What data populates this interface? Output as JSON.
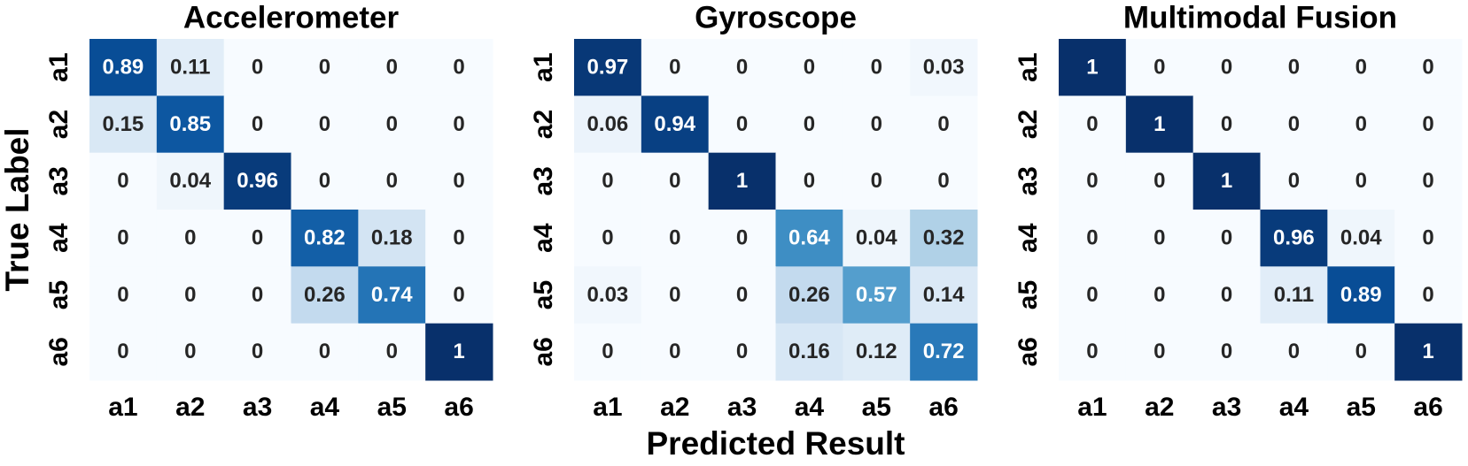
{
  "chart_data": [
    {
      "type": "heatmap",
      "title": "Accelerometer",
      "ylabel": "True Label",
      "cmap": "Blues",
      "clim": [
        0,
        1
      ],
      "x": [
        "a1",
        "a2",
        "a3",
        "a4",
        "a5",
        "a6"
      ],
      "y": [
        "a1",
        "a2",
        "a3",
        "a4",
        "a5",
        "a6"
      ],
      "values": [
        [
          0.89,
          0.11,
          0,
          0,
          0,
          0
        ],
        [
          0.15,
          0.85,
          0,
          0,
          0,
          0
        ],
        [
          0,
          0.04,
          0.96,
          0,
          0,
          0
        ],
        [
          0,
          0,
          0,
          0.82,
          0.18,
          0
        ],
        [
          0,
          0,
          0,
          0.26,
          0.74,
          0
        ],
        [
          0,
          0,
          0,
          0,
          0,
          1
        ]
      ]
    },
    {
      "type": "heatmap",
      "title": "Gyroscope",
      "xlabel": "Predicted Result",
      "cmap": "Blues",
      "clim": [
        0,
        1
      ],
      "x": [
        "a1",
        "a2",
        "a3",
        "a4",
        "a5",
        "a6"
      ],
      "y": [
        "a1",
        "a2",
        "a3",
        "a4",
        "a5",
        "a6"
      ],
      "values": [
        [
          0.97,
          0,
          0,
          0,
          0,
          0.03
        ],
        [
          0.06,
          0.94,
          0,
          0,
          0,
          0
        ],
        [
          0,
          0,
          1,
          0,
          0,
          0
        ],
        [
          0,
          0,
          0,
          0.64,
          0.04,
          0.32
        ],
        [
          0.03,
          0,
          0,
          0.26,
          0.57,
          0.14
        ],
        [
          0,
          0,
          0,
          0.16,
          0.12,
          0.72
        ]
      ]
    },
    {
      "type": "heatmap",
      "title": "Multimodal Fusion",
      "cmap": "Blues",
      "clim": [
        0,
        1
      ],
      "x": [
        "a1",
        "a2",
        "a3",
        "a4",
        "a5",
        "a6"
      ],
      "y": [
        "a1",
        "a2",
        "a3",
        "a4",
        "a5",
        "a6"
      ],
      "values": [
        [
          1,
          0,
          0,
          0,
          0,
          0
        ],
        [
          0,
          1,
          0,
          0,
          0,
          0
        ],
        [
          0,
          0,
          1,
          0,
          0,
          0
        ],
        [
          0,
          0,
          0,
          0.96,
          0.04,
          0
        ],
        [
          0,
          0,
          0,
          0.11,
          0.89,
          0
        ],
        [
          0,
          0,
          0,
          0,
          0,
          1
        ]
      ]
    }
  ]
}
